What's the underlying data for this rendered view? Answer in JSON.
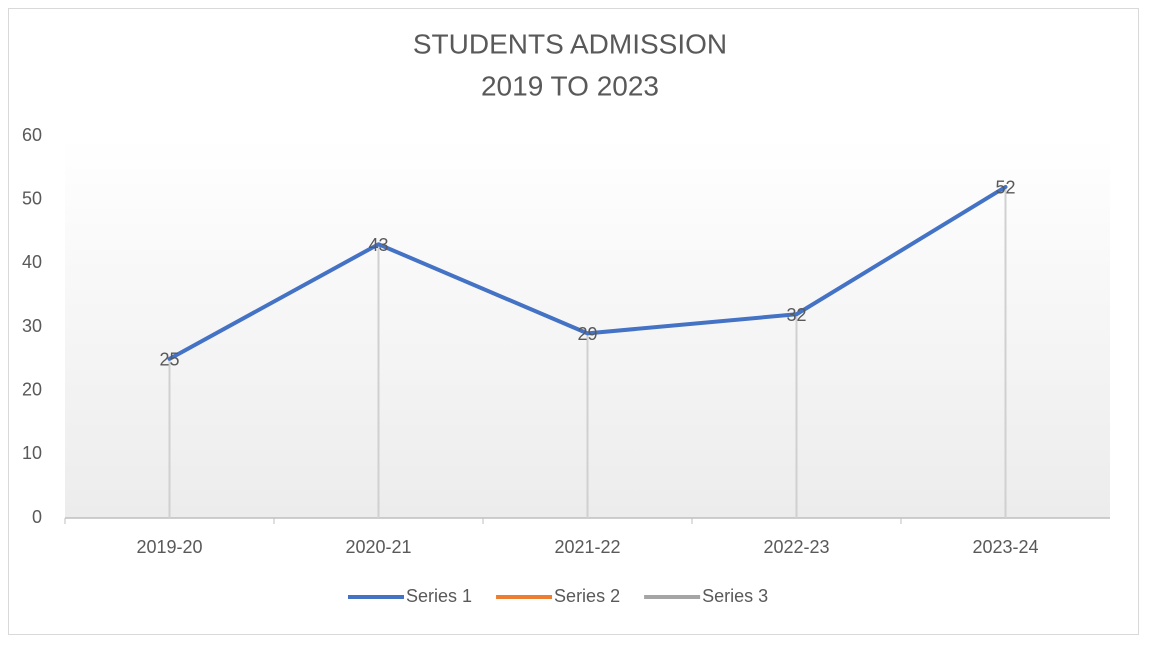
{
  "chart_data": {
    "type": "line",
    "title": [
      "STUDENTS  ADMISSION",
      "2019 TO  2023"
    ],
    "categories": [
      "2019-20",
      "2020-21",
      "2021-22",
      "2022-23",
      "2023-24"
    ],
    "series": [
      {
        "name": "Series 1",
        "color": "#4472c4",
        "values": [
          25,
          43,
          29,
          32,
          52
        ]
      },
      {
        "name": "Series 2",
        "color": "#ed7d31",
        "values": [
          null,
          null,
          null,
          null,
          null
        ]
      },
      {
        "name": "Series 3",
        "color": "#a5a5a5",
        "values": [
          null,
          null,
          null,
          null,
          null
        ]
      }
    ],
    "ylim": [
      0,
      60
    ],
    "yticks": [
      0,
      10,
      20,
      30,
      40,
      50,
      60
    ],
    "grid": false,
    "drop_lines": true,
    "data_labels": true,
    "legend": "bottom"
  }
}
